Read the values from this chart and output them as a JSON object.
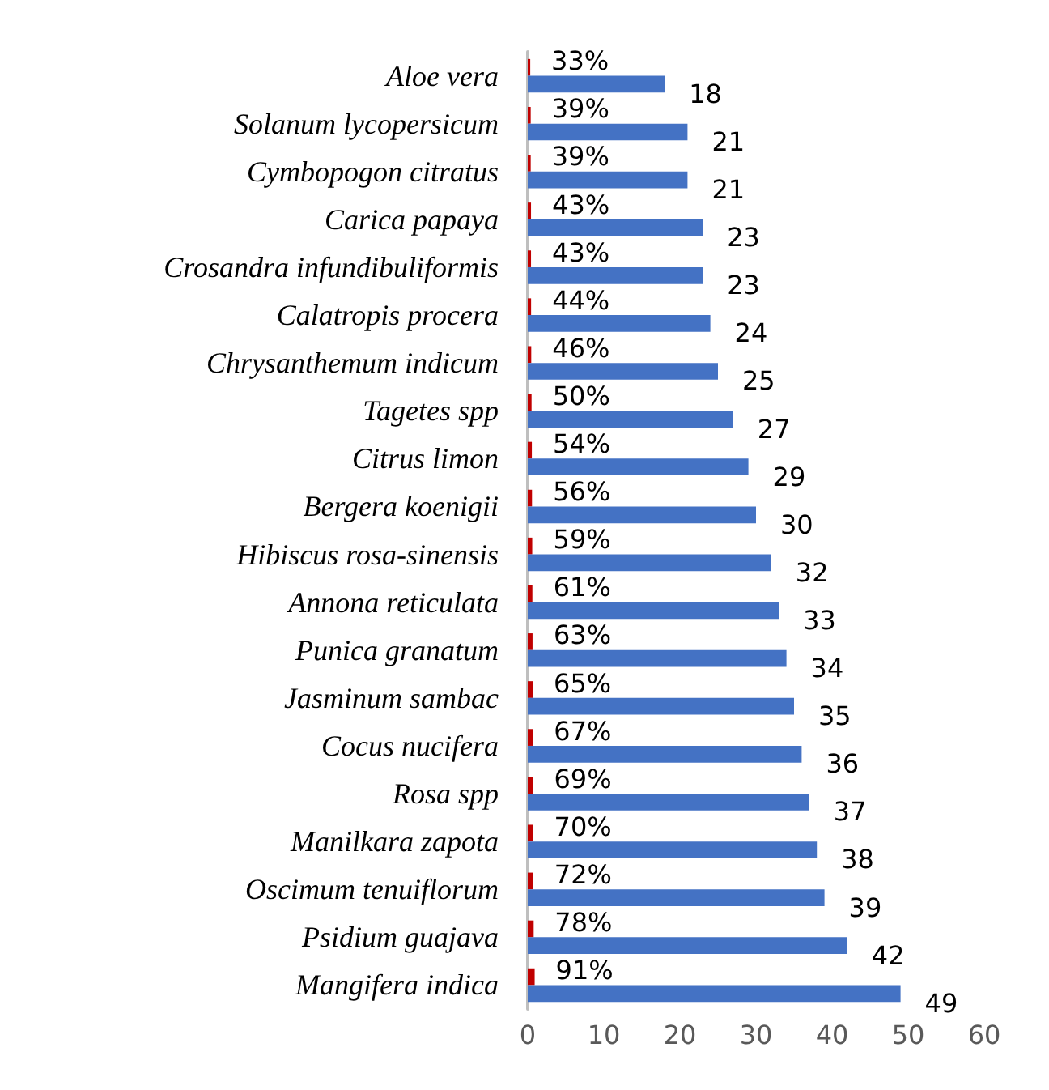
{
  "chart_data": {
    "type": "bar",
    "orientation": "horizontal",
    "categories": [
      "Aloe vera",
      "Solanum lycopersicum",
      "Cymbopogon citratus",
      "Carica papaya",
      "Crosandra infundibuliformis",
      "Calatropis procera",
      "Chrysanthemum indicum",
      "Tagetes spp",
      "Citrus limon",
      "Bergera koenigii",
      "Hibiscus rosa-sinensis",
      "Annona reticulata",
      "Punica granatum",
      "Jasminum sambac",
      "Cocus nucifera",
      "Rosa spp",
      "Manilkara zapota",
      "Oscimum tenuiflorum",
      "Psidium guajava",
      "Mangifera indica"
    ],
    "series": [
      {
        "color": "#c00000",
        "values": [
          0.33,
          0.39,
          0.39,
          0.43,
          0.43,
          0.44,
          0.46,
          0.5,
          0.54,
          0.56,
          0.59,
          0.61,
          0.63,
          0.65,
          0.67,
          0.69,
          0.7,
          0.72,
          0.78,
          0.91
        ],
        "value_labels": [
          "33%",
          "39%",
          "39%",
          "43%",
          "43%",
          "44%",
          "46%",
          "50%",
          "54%",
          "56%",
          "59%",
          "61%",
          "63%",
          "65%",
          "67%",
          "69%",
          "70%",
          "72%",
          "78%",
          "91%"
        ]
      },
      {
        "color": "#4472c4",
        "values": [
          18,
          21,
          21,
          23,
          23,
          24,
          25,
          27,
          29,
          30,
          32,
          33,
          34,
          35,
          36,
          37,
          38,
          39,
          42,
          49
        ],
        "value_labels": [
          "18",
          "21",
          "21",
          "23",
          "23",
          "24",
          "25",
          "27",
          "29",
          "30",
          "32",
          "33",
          "34",
          "35",
          "36",
          "37",
          "38",
          "39",
          "42",
          "49"
        ]
      }
    ],
    "xlim": [
      0,
      60
    ],
    "xticks": [
      0,
      10,
      20,
      30,
      40,
      50,
      60
    ],
    "grid": false
  }
}
